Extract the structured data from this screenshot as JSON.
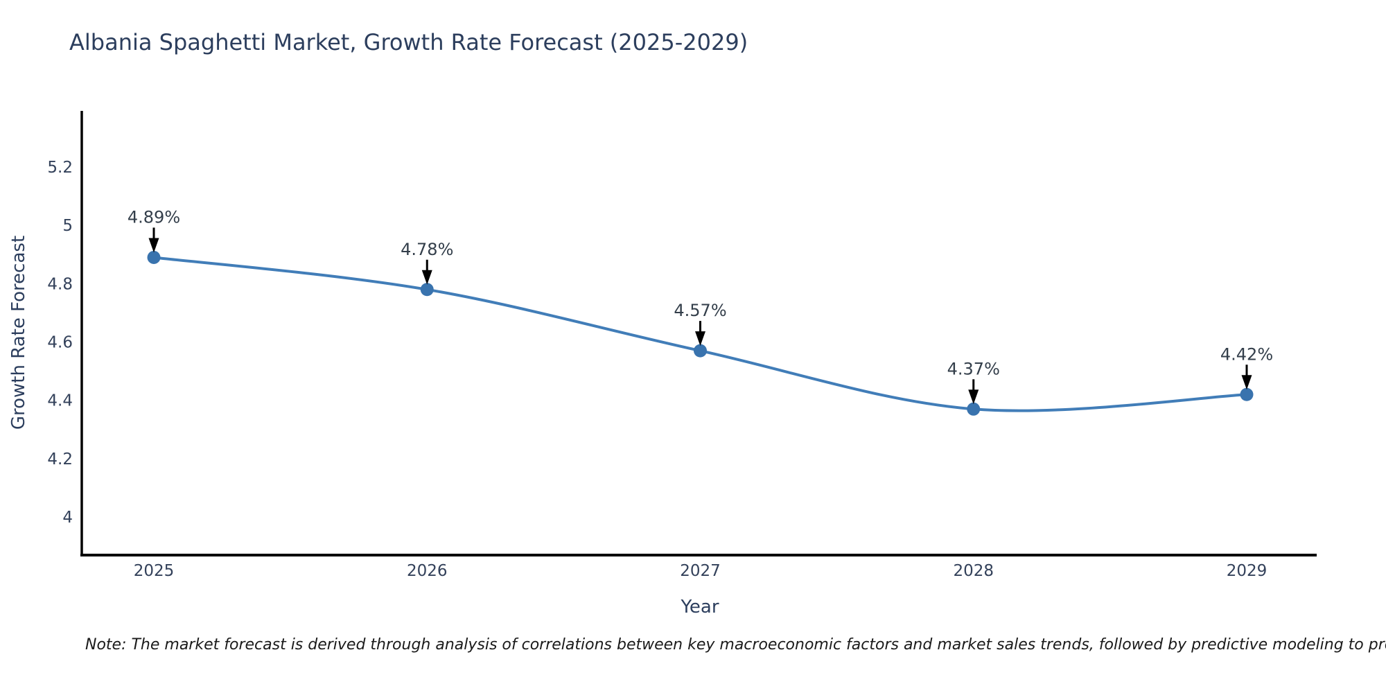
{
  "note": "Note: The market forecast is derived through analysis of correlations between key macroeconomic factors and market sales trends, followed by predictive modeling to project future sales",
  "chart_data": {
    "type": "line",
    "title": "Albania Spaghetti Market, Growth Rate Forecast (2025-2029)",
    "xlabel": "Year",
    "ylabel": "Growth Rate Forecast",
    "categories": [
      "2025",
      "2026",
      "2027",
      "2028",
      "2029"
    ],
    "series": [
      {
        "name": "Growth Rate Forecast",
        "values": [
          4.89,
          4.78,
          4.57,
          4.37,
          4.42
        ],
        "point_labels": [
          "4.89%",
          "4.78%",
          "4.57%",
          "4.37%",
          "4.42%"
        ]
      }
    ],
    "ytick_labels": [
      "4",
      "4.2",
      "4.4",
      "4.6",
      "4.8",
      "5",
      "5.2"
    ],
    "ytick_values": [
      4,
      4.2,
      4.4,
      4.6,
      4.8,
      5,
      5.2
    ],
    "ylim": [
      3.87,
      5.39
    ],
    "grid": false,
    "legend": null,
    "annotation_style": "label-above-with-down-arrow",
    "colors": {
      "line": "#417db8",
      "marker": "#3973ae",
      "arrow": "#000000",
      "axis": "#000000",
      "tick_label": "#33415a",
      "title": "#2c3e5d",
      "annotation": "#333e4a",
      "note": "#1a1a1a"
    }
  }
}
